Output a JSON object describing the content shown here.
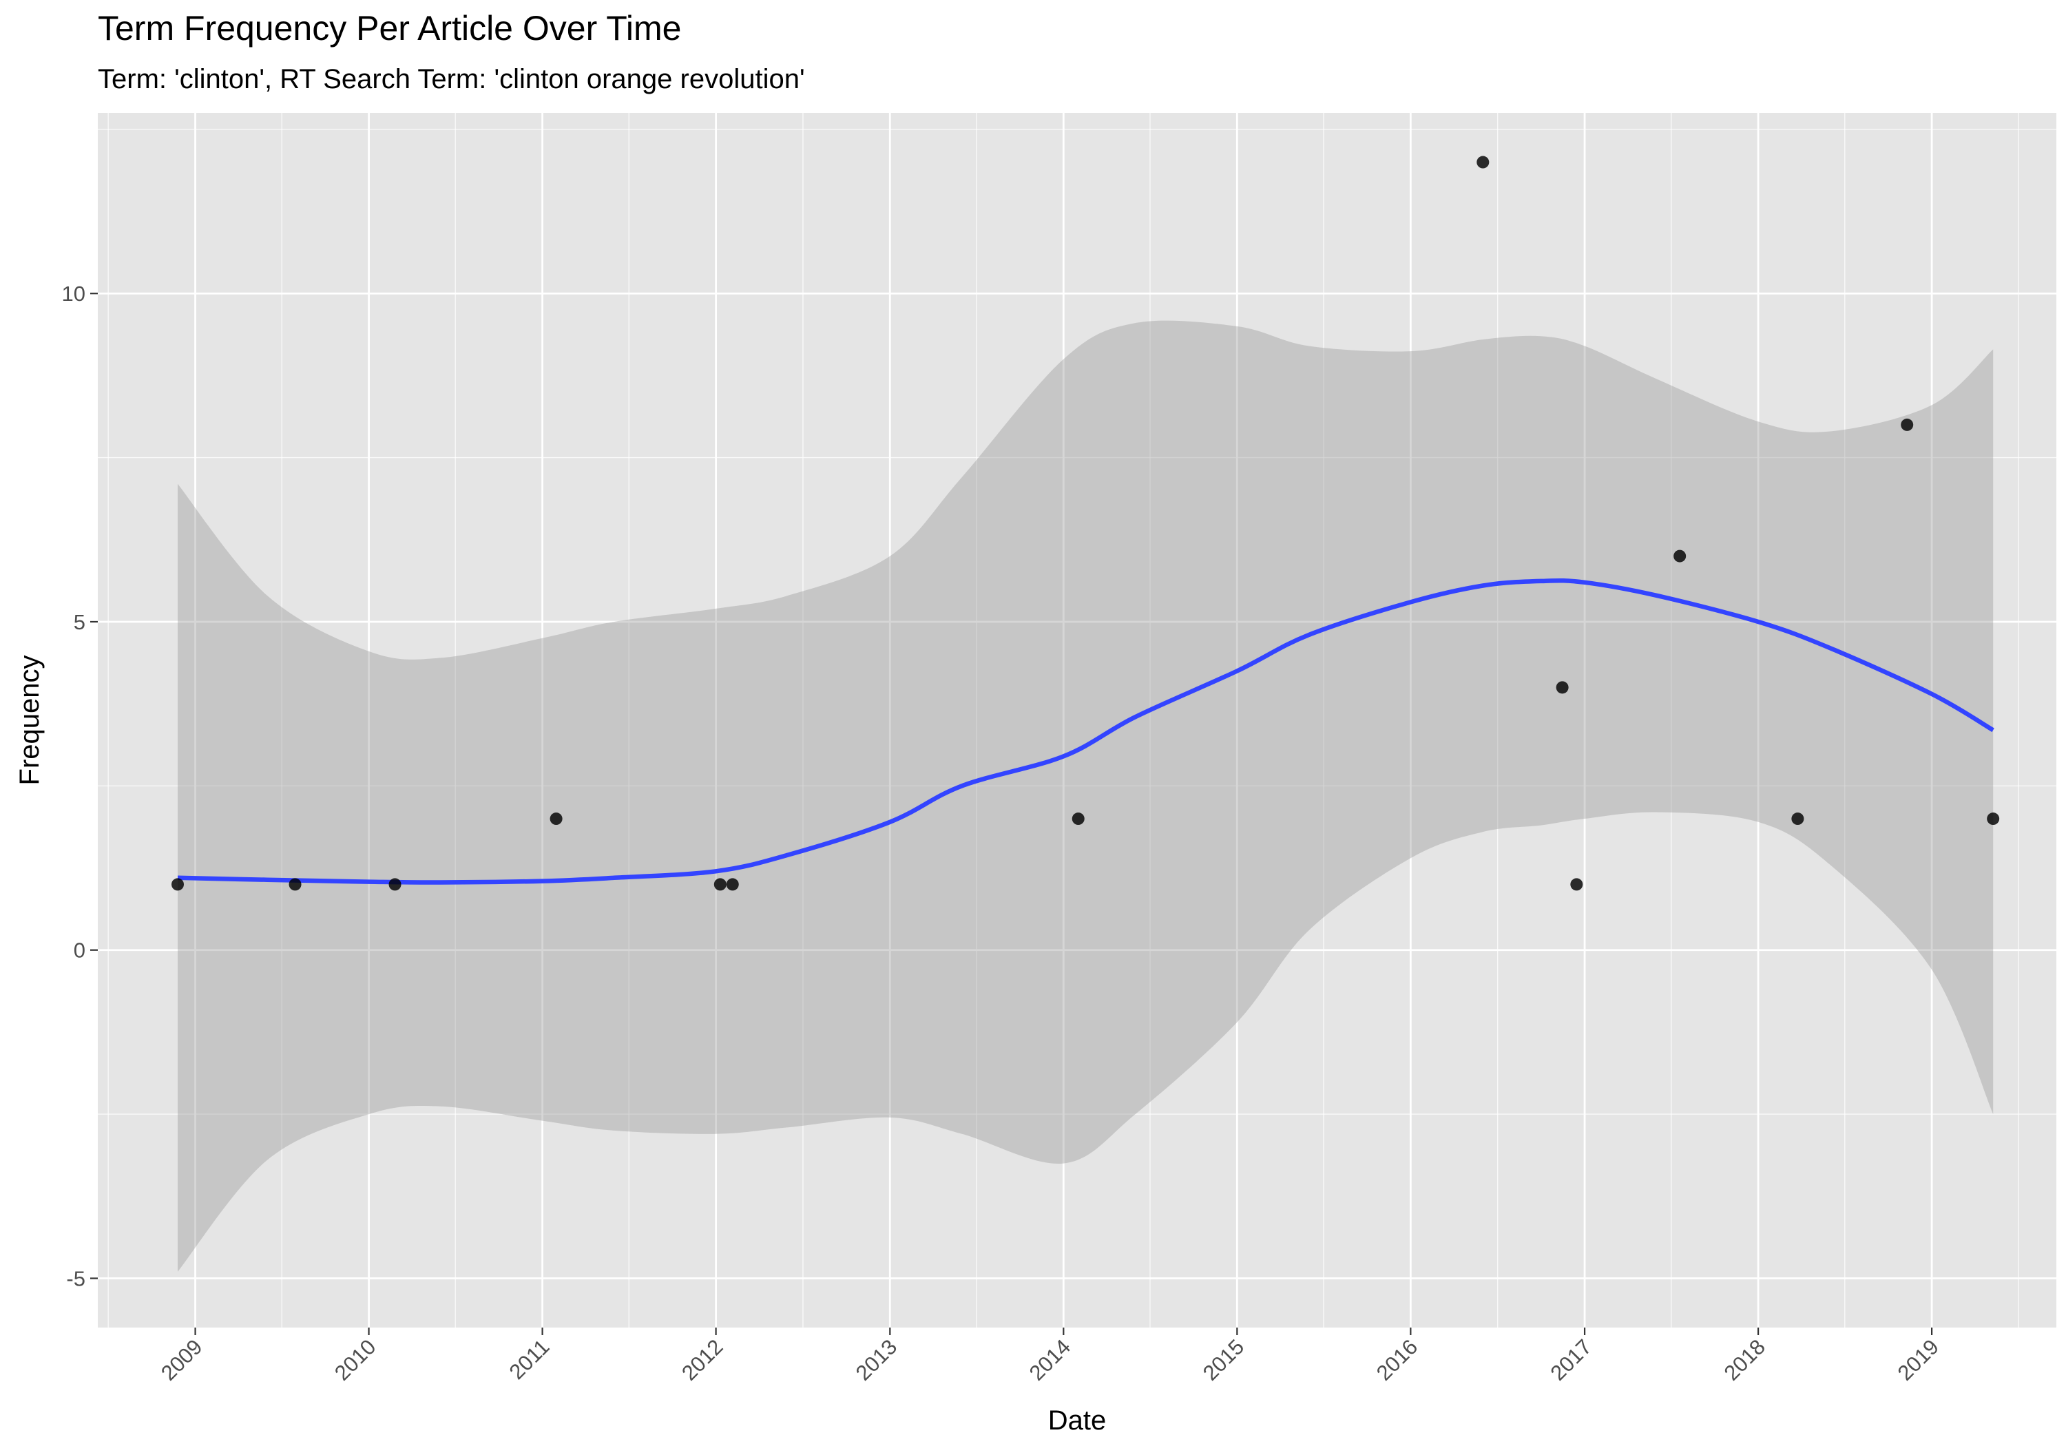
{
  "chart_data": {
    "type": "scatter",
    "title": "Term Frequency Per Article Over Time",
    "subtitle": "Term: 'clinton', RT Search Term: 'clinton orange revolution'",
    "xlabel": "Date",
    "ylabel": "Frequency",
    "x_scale": "date",
    "xlim": [
      "2008-06-10",
      "2019-09-20"
    ],
    "ylim": [
      -5.75,
      12.75
    ],
    "x_ticks": [
      "2009",
      "2010",
      "2011",
      "2012",
      "2013",
      "2014",
      "2015",
      "2016",
      "2017",
      "2018",
      "2019"
    ],
    "y_ticks": [
      -5,
      0,
      5,
      10
    ],
    "y_tick_labels": [
      "-5",
      "0",
      "5",
      "10"
    ],
    "grid": true,
    "legend": "none",
    "points": [
      {
        "x": "2008-11-25",
        "y": 1
      },
      {
        "x": "2009-07-30",
        "y": 1
      },
      {
        "x": "2010-02-25",
        "y": 1
      },
      {
        "x": "2011-01-30",
        "y": 2
      },
      {
        "x": "2012-01-10",
        "y": 1
      },
      {
        "x": "2012-02-05",
        "y": 1
      },
      {
        "x": "2014-02-01",
        "y": 2
      },
      {
        "x": "2016-06-01",
        "y": 12
      },
      {
        "x": "2016-11-15",
        "y": 4
      },
      {
        "x": "2016-12-15",
        "y": 1
      },
      {
        "x": "2017-07-20",
        "y": 6
      },
      {
        "x": "2018-03-25",
        "y": 2
      },
      {
        "x": "2018-11-10",
        "y": 8
      },
      {
        "x": "2019-05-10",
        "y": 2
      }
    ],
    "smooth": {
      "x": [
        "2008-11-25",
        "2009-06-01",
        "2010-01-01",
        "2010-06-01",
        "2011-01-01",
        "2011-06-01",
        "2012-01-01",
        "2012-06-01",
        "2013-01-01",
        "2013-06-01",
        "2014-01-01",
        "2014-06-01",
        "2015-01-01",
        "2015-06-01",
        "2016-01-01",
        "2016-06-01",
        "2016-10-01",
        "2017-01-01",
        "2017-06-01",
        "2018-01-01",
        "2018-06-01",
        "2019-01-01",
        "2019-05-10"
      ],
      "y": [
        1.1,
        1.07,
        1.04,
        1.03,
        1.05,
        1.1,
        1.2,
        1.45,
        1.95,
        2.5,
        2.95,
        3.55,
        4.25,
        4.8,
        5.3,
        5.55,
        5.62,
        5.6,
        5.4,
        5.0,
        4.6,
        3.9,
        3.35
      ],
      "lower": [
        -4.9,
        -3.2,
        -2.5,
        -2.38,
        -2.6,
        -2.75,
        -2.8,
        -2.7,
        -2.55,
        -2.8,
        -3.25,
        -2.5,
        -1.1,
        0.3,
        1.4,
        1.8,
        1.9,
        2.0,
        2.1,
        1.95,
        1.3,
        -0.3,
        -2.5
      ],
      "upper": [
        7.1,
        5.4,
        4.55,
        4.45,
        4.75,
        5.0,
        5.2,
        5.4,
        6.0,
        7.2,
        9.0,
        9.55,
        9.5,
        9.2,
        9.12,
        9.3,
        9.35,
        9.2,
        8.7,
        8.05,
        7.9,
        8.3,
        9.15
      ]
    },
    "colors": {
      "panel": "#e5e5e5",
      "grid_major": "#ffffff",
      "points": "#000000",
      "smooth_line": "#3344ff",
      "ribbon": "#999999"
    }
  }
}
